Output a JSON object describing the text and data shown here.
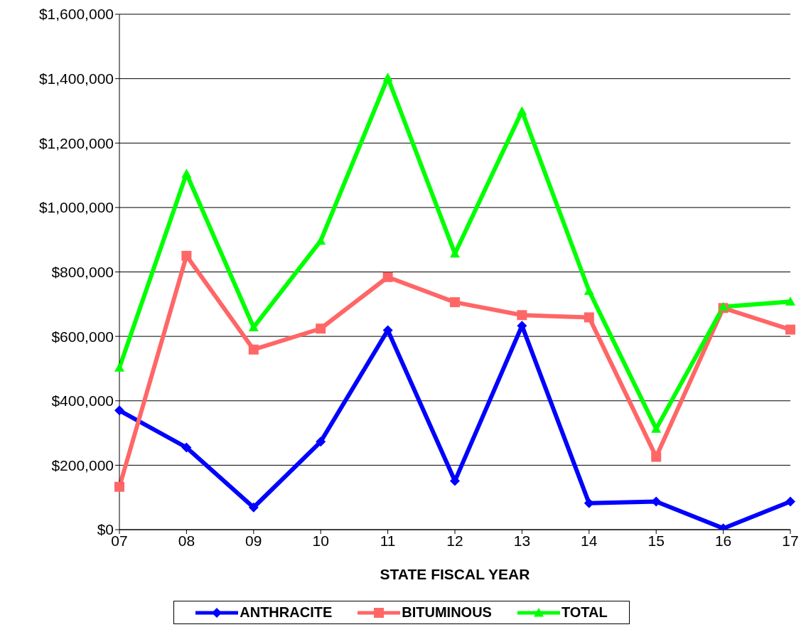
{
  "chart_data": {
    "type": "line",
    "xlabel": "STATE FISCAL YEAR",
    "categories": [
      "07",
      "08",
      "09",
      "10",
      "11",
      "12",
      "13",
      "14",
      "15",
      "16",
      "17"
    ],
    "series": [
      {
        "name": "ANTHRACITE",
        "color": "#0000ff",
        "marker": "diamond",
        "values": [
          370000,
          255000,
          69000,
          273000,
          619000,
          151000,
          633000,
          82000,
          87000,
          4000,
          87000
        ]
      },
      {
        "name": "BITUMINOUS",
        "color": "#ff6666",
        "marker": "square",
        "values": [
          133000,
          850000,
          559000,
          624000,
          784000,
          706000,
          666000,
          659000,
          226000,
          688000,
          621000
        ]
      },
      {
        "name": "TOTAL",
        "color": "#00ff00",
        "marker": "triangle",
        "values": [
          503000,
          1105000,
          628000,
          897000,
          1403000,
          857000,
          1299000,
          741000,
          313000,
          692000,
          708000
        ]
      }
    ],
    "ylim": [
      0,
      1600000
    ],
    "yticks": [
      {
        "value": 0,
        "label": "$0"
      },
      {
        "value": 200000,
        "label": "$200,000"
      },
      {
        "value": 400000,
        "label": "$400,000"
      },
      {
        "value": 600000,
        "label": "$600,000"
      },
      {
        "value": 800000,
        "label": "$800,000"
      },
      {
        "value": 1000000,
        "label": "$1,000,000"
      },
      {
        "value": 1200000,
        "label": "$1,200,000"
      },
      {
        "value": 1400000,
        "label": "$1,400,000"
      },
      {
        "value": 1600000,
        "label": "$1,600,000"
      }
    ],
    "grid": "y",
    "legend": "bottom",
    "line_style": "solid"
  }
}
